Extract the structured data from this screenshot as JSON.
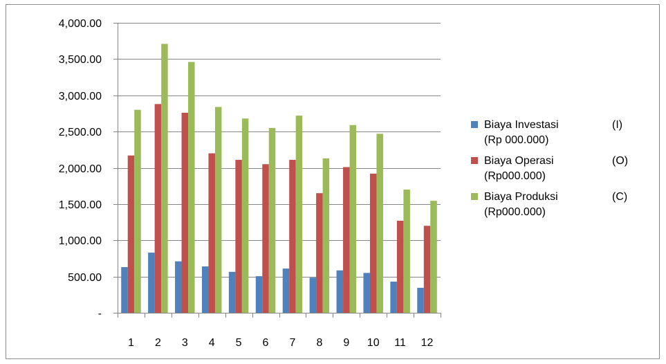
{
  "chart_data": {
    "type": "bar",
    "categories": [
      "1",
      "2",
      "3",
      "4",
      "5",
      "6",
      "7",
      "8",
      "9",
      "10",
      "11",
      "12"
    ],
    "series": [
      {
        "name": "Biaya Investasi",
        "code": "(I)",
        "unit": "(Rp 000.000)",
        "color": "#4f81bd",
        "values": [
          630,
          830,
          710,
          640,
          565,
          505,
          610,
          485,
          585,
          550,
          430,
          345
        ]
      },
      {
        "name": "Biaya Operasi",
        "code": "(O)",
        "unit": "(Rp000.000)",
        "color": "#c0504d",
        "values": [
          2170,
          2880,
          2760,
          2200,
          2110,
          2050,
          2110,
          1650,
          2010,
          1920,
          1270,
          1200
        ]
      },
      {
        "name": "Biaya Produksi",
        "code": "(C)",
        "unit": "(Rp000.000)",
        "color": "#9bbb59",
        "values": [
          2800,
          3710,
          3460,
          2840,
          2680,
          2550,
          2720,
          2130,
          2590,
          2470,
          1700,
          1545
        ]
      }
    ],
    "y_ticks": [
      {
        "value": 0,
        "label": "-"
      },
      {
        "value": 500,
        "label": "500.00"
      },
      {
        "value": 1000,
        "label": "1,000.00"
      },
      {
        "value": 1500,
        "label": "1,500.00"
      },
      {
        "value": 2000,
        "label": "2,000.00"
      },
      {
        "value": 2500,
        "label": "2,500.00"
      },
      {
        "value": 3000,
        "label": "3,000.00"
      },
      {
        "value": 3500,
        "label": "3,500.00"
      },
      {
        "value": 4000,
        "label": "4,000.00"
      }
    ],
    "ylim": [
      0,
      4000
    ],
    "grid": true,
    "legend": "right",
    "gridline_color": "#868686"
  }
}
